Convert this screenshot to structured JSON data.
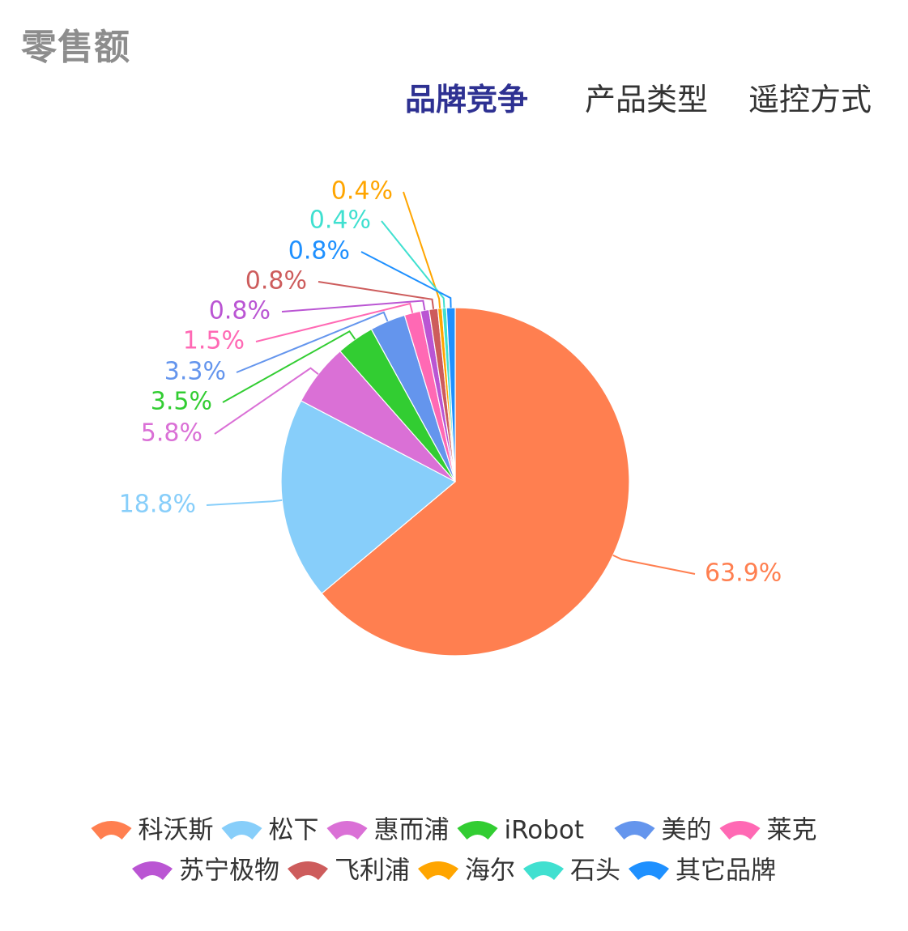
{
  "page": {
    "title": "零售额"
  },
  "tabs": [
    {
      "label": "品牌竞争",
      "active": true
    },
    {
      "label": "产品类型",
      "active": false
    },
    {
      "label": "遥控方式",
      "active": false
    }
  ],
  "chart_data": {
    "type": "pie",
    "series": [
      {
        "name": "科沃斯",
        "value": 63.9,
        "label": "63.9%",
        "color": "#ff7f50"
      },
      {
        "name": "松下",
        "value": 18.8,
        "label": "18.8%",
        "color": "#87cefa"
      },
      {
        "name": "惠而浦",
        "value": 5.8,
        "label": "5.8%",
        "color": "#da70d6"
      },
      {
        "name": "iRobot",
        "value": 3.5,
        "label": "3.5%",
        "color": "#32cd32"
      },
      {
        "name": "美的",
        "value": 3.3,
        "label": "3.3%",
        "color": "#6495ed"
      },
      {
        "name": "莱克",
        "value": 1.5,
        "label": "1.5%",
        "color": "#ff69b4"
      },
      {
        "name": "苏宁极物",
        "value": 0.8,
        "label": "0.8%",
        "color": "#ba55d3"
      },
      {
        "name": "飞利浦",
        "value": 0.8,
        "label": "0.8%",
        "color": "#cd5c5c"
      },
      {
        "name": "海尔",
        "value": 0.4,
        "label": "0.4%",
        "color": "#ffa500"
      },
      {
        "name": "石头",
        "value": 0.4,
        "label": "0.4%",
        "color": "#40e0d0"
      },
      {
        "name": "其它品牌",
        "value": 0.8,
        "label": "0.8%",
        "color": "#1e90ff"
      }
    ],
    "legend_position": "bottom"
  }
}
